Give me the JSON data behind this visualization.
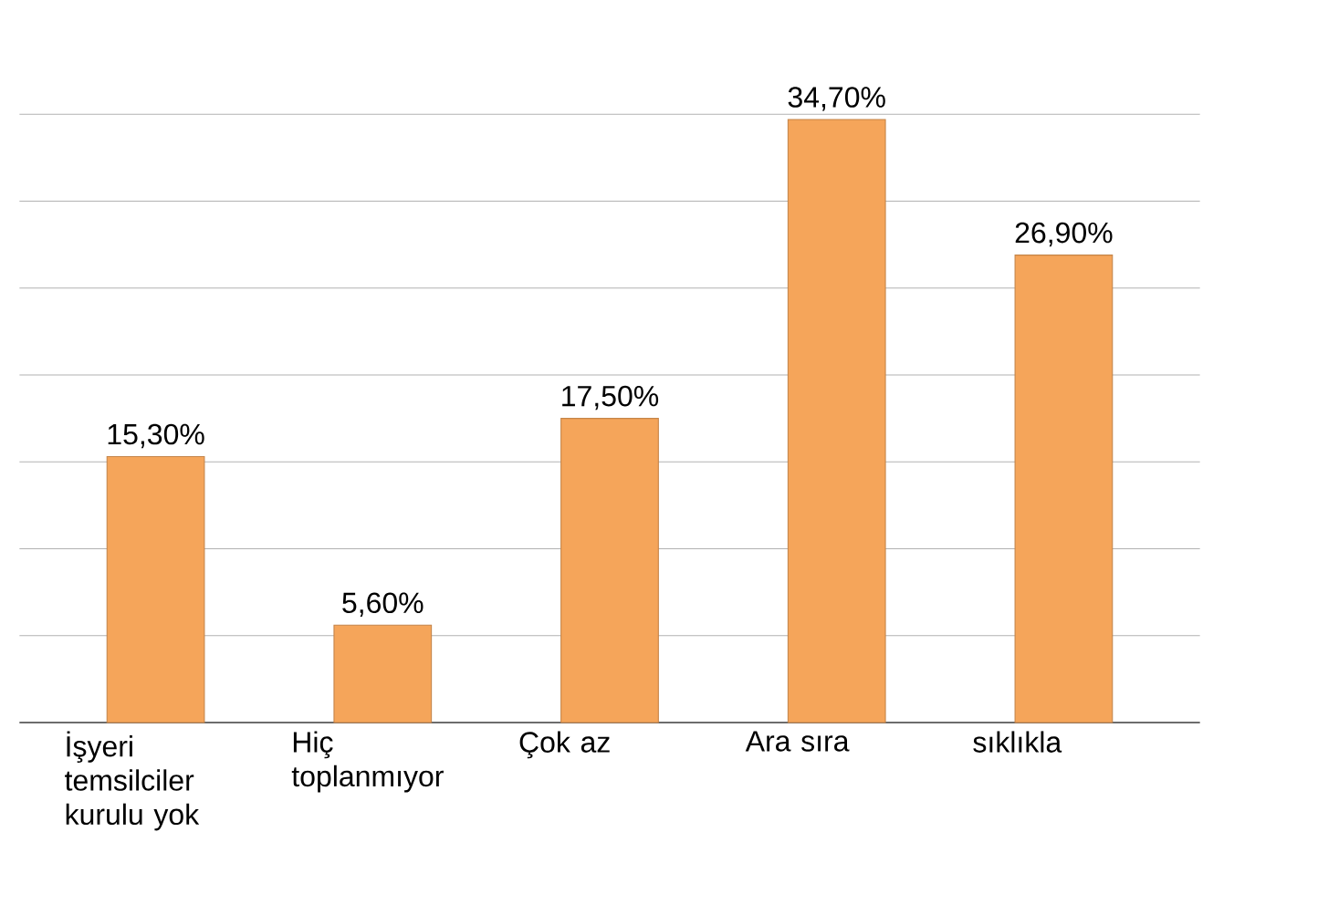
{
  "chart_data": {
    "type": "bar",
    "categories": [
      "İşyeri temsilciler kurulu yok",
      "Hiç toplanmıyor",
      "Çok az",
      "Ara sıra",
      "sıklıkla"
    ],
    "values": [
      15.3,
      5.6,
      17.5,
      34.7,
      26.9
    ],
    "value_labels": [
      "15,30%",
      "5,60%",
      "17,50%",
      "34,70%",
      "26,90%"
    ],
    "color": "#f5a55a",
    "ylim": [
      0,
      35
    ],
    "grid": "y",
    "tick_labels": "x"
  }
}
